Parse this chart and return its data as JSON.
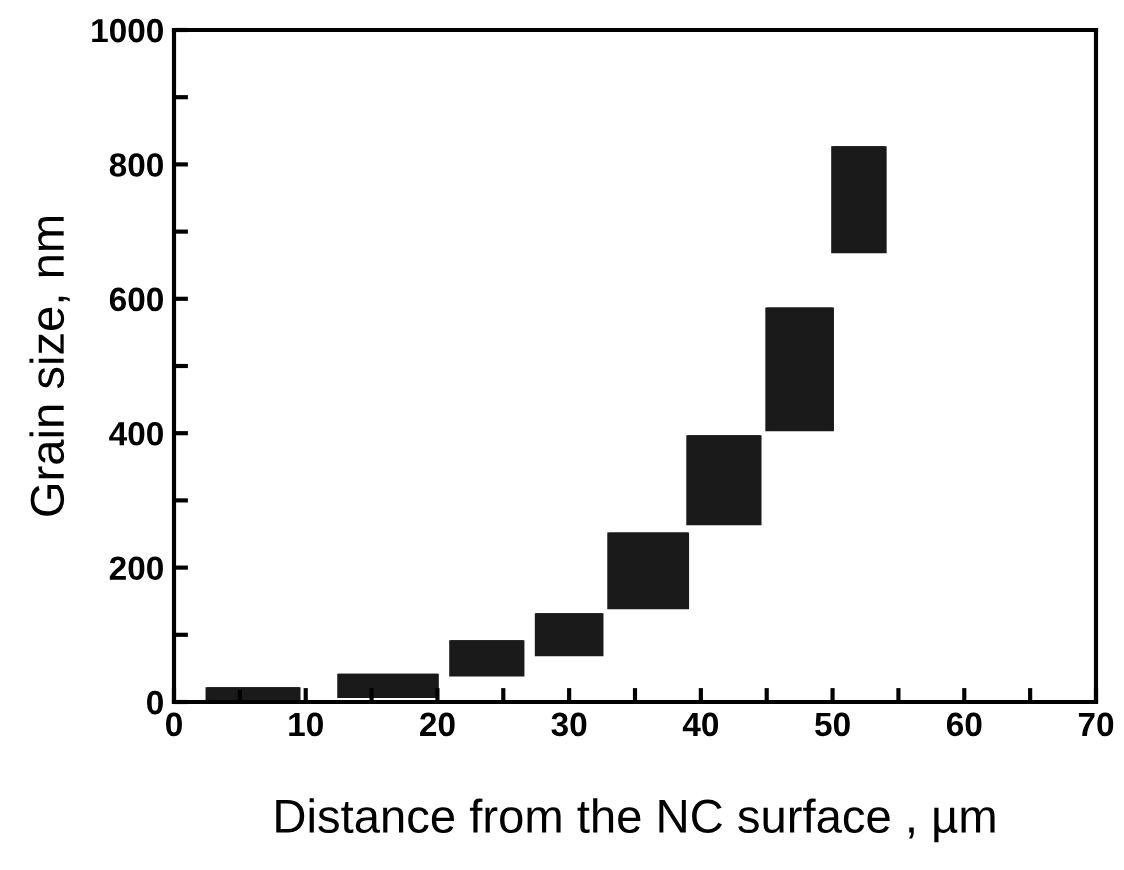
{
  "chart_data": {
    "type": "bar",
    "xlabel": "Distance from the NC surface , µm",
    "ylabel": "Grain size, nm",
    "x": [
      6,
      16.25,
      23.75,
      30,
      36,
      41.75,
      47.5,
      52
    ],
    "xerrors": [
      [
        2.5,
        9.5
      ],
      [
        12.5,
        20
      ],
      [
        21,
        26.5
      ],
      [
        27.5,
        32.5
      ],
      [
        33,
        39
      ],
      [
        39,
        44.5
      ],
      [
        45,
        50
      ],
      [
        50,
        54
      ]
    ],
    "base": [
      0,
      8,
      40,
      70,
      140,
      265,
      405,
      670
    ],
    "values": [
      20,
      32,
      50,
      60,
      110,
      130,
      180,
      155
    ],
    "color": "#1a1a1a",
    "xlim": [
      0,
      70
    ],
    "xticks": [
      0,
      {
        "value": 5,
        "label": null
      },
      10,
      {
        "value": 15,
        "label": null
      },
      20,
      {
        "value": 25,
        "label": null
      },
      30,
      {
        "value": 35,
        "label": null
      },
      40,
      {
        "value": 45,
        "label": null
      },
      50,
      {
        "value": 55,
        "label": null
      },
      60,
      {
        "value": 65,
        "label": null
      },
      70
    ],
    "ylim": [
      0,
      1000
    ],
    "yticks": [
      0,
      {
        "value": 100,
        "label": null
      },
      200,
      {
        "value": 300,
        "label": null
      },
      400,
      {
        "value": 500,
        "label": null
      },
      600,
      {
        "value": 700,
        "label": null
      },
      800,
      {
        "value": 900,
        "label": null
      },
      1000
    ],
    "grid": false
  }
}
